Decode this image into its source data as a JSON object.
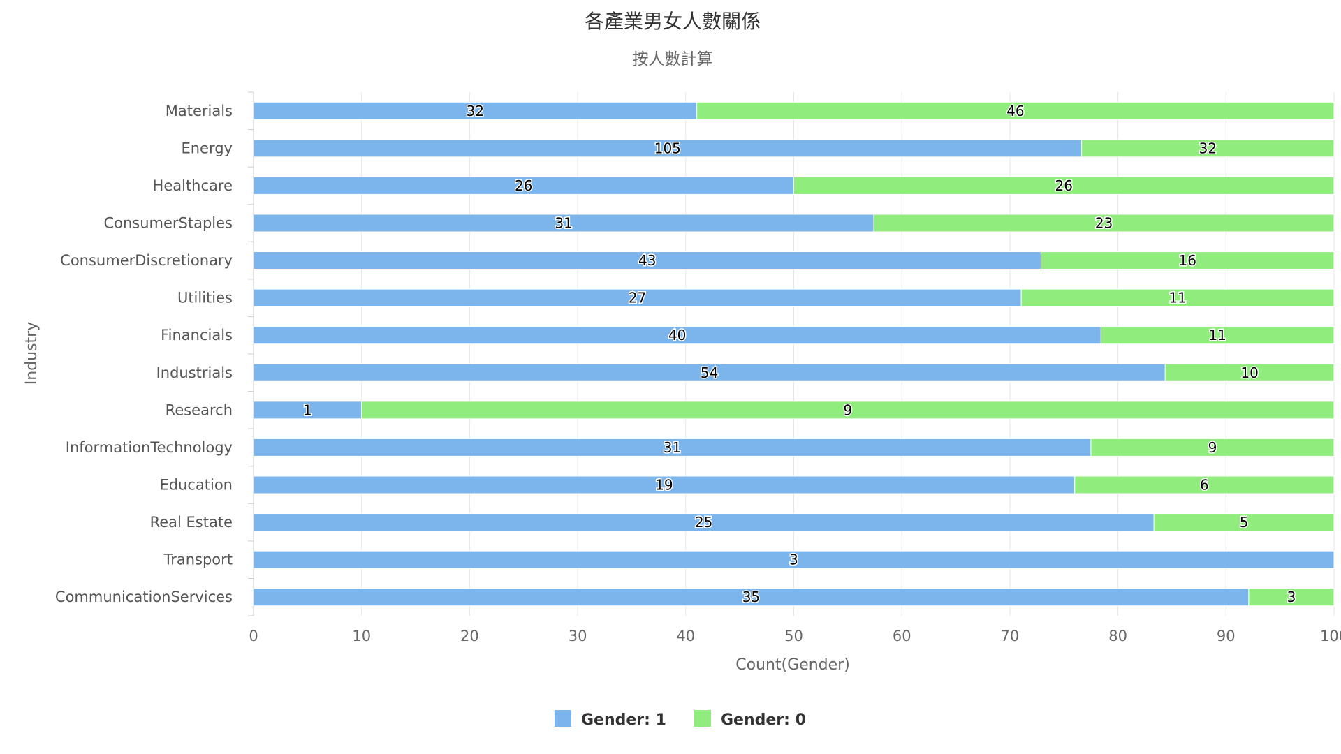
{
  "chart_data": {
    "type": "bar",
    "orientation": "horizontal",
    "stacking": "percent",
    "title": "各產業男女人數關係",
    "subtitle": "按人數計算",
    "xlabel": "Count(Gender)",
    "ylabel": "Industry",
    "xlim": [
      0,
      100
    ],
    "x_ticks": [
      "0",
      "10",
      "20",
      "30",
      "40",
      "50",
      "60",
      "70",
      "80",
      "90",
      "100"
    ],
    "grid": true,
    "legend_position": "bottom-center",
    "categories": [
      "Materials",
      "Energy",
      "Healthcare",
      "ConsumerStaples",
      "ConsumerDiscretionary",
      "Utilities",
      "Financials",
      "Industrials",
      "Research",
      "InformationTechnology",
      "Education",
      "Real Estate",
      "Transport",
      "CommunicationServices"
    ],
    "series": [
      {
        "name": "Gender: 1",
        "color": "#7cb5ec",
        "values": [
          32,
          105,
          26,
          31,
          43,
          27,
          40,
          54,
          1,
          31,
          19,
          25,
          3,
          35
        ]
      },
      {
        "name": "Gender: 0",
        "color": "#90ed7d",
        "values": [
          46,
          32,
          26,
          23,
          16,
          11,
          11,
          10,
          9,
          9,
          6,
          5,
          0,
          3
        ]
      }
    ]
  }
}
